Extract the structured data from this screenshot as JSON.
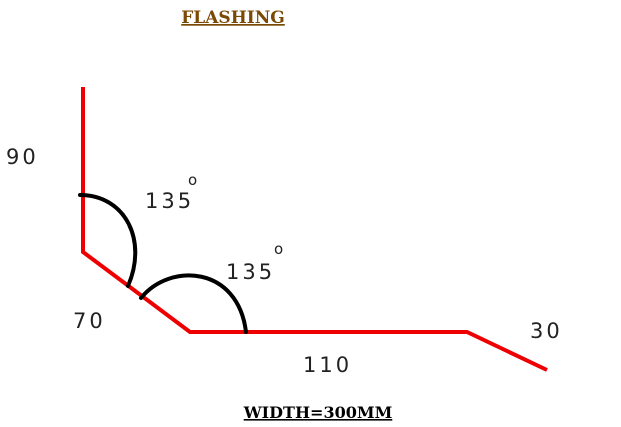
{
  "title": "FLASHING",
  "footer": "WIDTH=300MM",
  "colors": {
    "profile": "#ee0000",
    "angle_arc": "#000000",
    "title": "#7a4a05"
  },
  "segments": {
    "seg_1": "90",
    "seg_2": "70",
    "seg_3": "110",
    "seg_4": "30"
  },
  "angles": {
    "angle_1": "135",
    "angle_2": "135",
    "degree_symbol": "o"
  }
}
